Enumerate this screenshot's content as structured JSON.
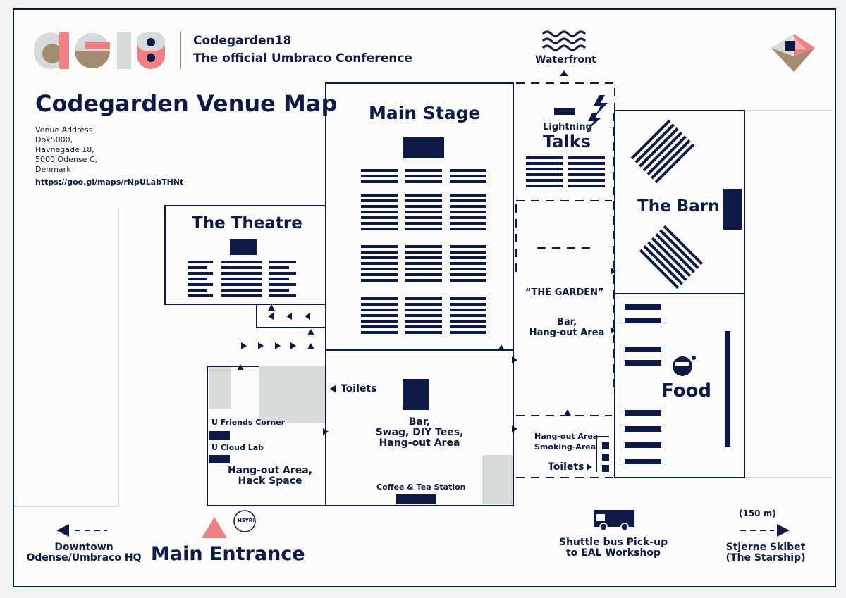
{
  "header": {
    "logo_text": "CG18",
    "event_name": "Codegarden18",
    "event_tagline": "The official Umbraco Conference"
  },
  "title": "Codegarden Venue Map",
  "venue": {
    "address_label": "Venue Address:",
    "address_lines": [
      "Dok5000,",
      "Havnegade 18,",
      "5000 Odense C,",
      "Denmark"
    ],
    "map_link": "https://goo.gl/maps/rNpULabTHNt"
  },
  "rooms": {
    "main_stage": "Main Stage",
    "theatre": "The Theatre",
    "lightning_small": "Lightning",
    "lightning_big": "Talks",
    "barn": "The Barn",
    "garden": "“THE GARDEN”",
    "garden_bar": [
      "Bar,",
      "Hang-out Area"
    ],
    "food": "Food",
    "central_bar": [
      "Bar,",
      "Swag, DIY Tees,",
      "Hang-out Area"
    ],
    "coffee": "Coffee & Tea Station",
    "toilets_left": "Toilets",
    "toilets_right": "Toilets",
    "smoking": [
      "Hang-out Area",
      "Smoking-Area"
    ],
    "friends_corner": "U Friends Corner",
    "cloud_lab": "U Cloud Lab",
    "hack_space": [
      "Hang-out Area,",
      "Hack Space"
    ]
  },
  "waterfront": "Waterfront",
  "bottom": {
    "downtown": [
      "Downtown",
      "Odense/Umbraco HQ"
    ],
    "main_entrance": "Main  Entrance",
    "badge": "H5YR!",
    "shuttle": [
      "Shuttle bus Pick-up",
      "to EAL Workshop"
    ],
    "distance": "(150 m)",
    "starship": [
      "Stjerne Skibet",
      "(The Starship)"
    ]
  },
  "colors": {
    "navy": "#0c1a45",
    "pink": "#f08085",
    "tan": "#a58b6f",
    "grey": "#d7dadb"
  }
}
